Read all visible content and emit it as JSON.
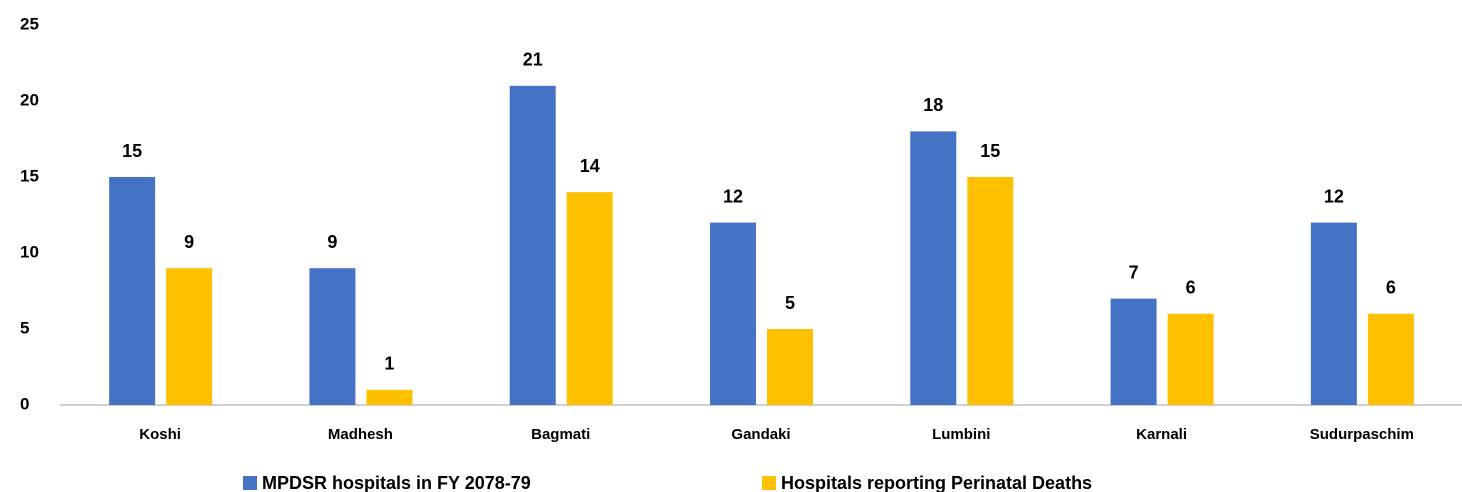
{
  "chart_data": {
    "type": "bar",
    "categories": [
      "Koshi",
      "Madhesh",
      "Bagmati",
      "Gandaki",
      "Lumbini",
      "Karnali",
      "Sudurpaschim"
    ],
    "series": [
      {
        "name": "MPDSR hospitals in FY 2078-79",
        "color": "#4472c4",
        "values": [
          15,
          9,
          21,
          12,
          18,
          7,
          12
        ]
      },
      {
        "name": "Hospitals reporting Perinatal Deaths",
        "color": "#ffc000",
        "values": [
          9,
          1,
          14,
          5,
          15,
          6,
          6
        ]
      }
    ],
    "ylim": [
      0,
      25
    ],
    "yticks": [
      0,
      5,
      10,
      15,
      20,
      25
    ],
    "grid": false,
    "legend": "bottom"
  }
}
